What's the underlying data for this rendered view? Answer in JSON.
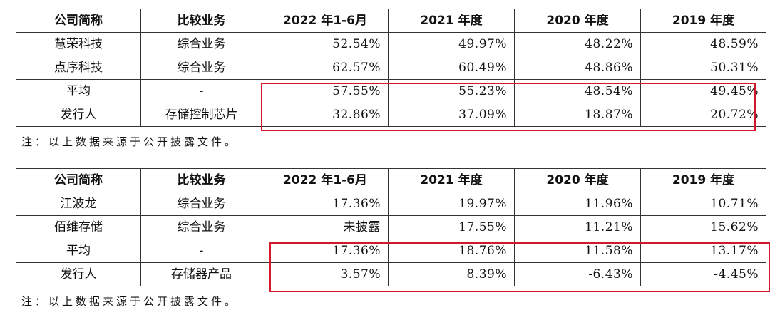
{
  "table1": {
    "headers": [
      "公司简称",
      "比较业务",
      "2022 年1-6月",
      "2021 年度",
      "2020 年度",
      "2019 年度"
    ],
    "rows": [
      [
        "慧荣科技",
        "综合业务",
        "52.54%",
        "49.97%",
        "48.22%",
        "48.59%"
      ],
      [
        "点序科技",
        "综合业务",
        "62.57%",
        "60.49%",
        "48.86%",
        "50.31%"
      ],
      [
        "平均",
        "-",
        "57.55%",
        "55.23%",
        "48.54%",
        "49.45%"
      ],
      [
        "发行人",
        "存储控制芯片",
        "32.86%",
        "37.09%",
        "18.87%",
        "20.72%"
      ]
    ],
    "note": "注：以上数据来源于公开披露文件。"
  },
  "table2": {
    "headers": [
      "公司简称",
      "比较业务",
      "2022 年1-6月",
      "2021 年度",
      "2020 年度",
      "2019 年度"
    ],
    "rows": [
      [
        "江波龙",
        "综合业务",
        "17.36%",
        "19.97%",
        "11.96%",
        "10.71%"
      ],
      [
        "佰维存储",
        "综合业务",
        "未披露",
        "17.55%",
        "11.21%",
        "15.62%"
      ],
      [
        "平均",
        "-",
        "17.36%",
        "18.76%",
        "11.58%",
        "13.17%"
      ],
      [
        "发行人",
        "存储器产品",
        "3.57%",
        "8.39%",
        "-6.43%",
        "-4.45%"
      ]
    ],
    "note": "注：以上数据来源于公开披露文件。"
  },
  "colors": {
    "highlight": "#d0192b",
    "border": "#333333"
  }
}
